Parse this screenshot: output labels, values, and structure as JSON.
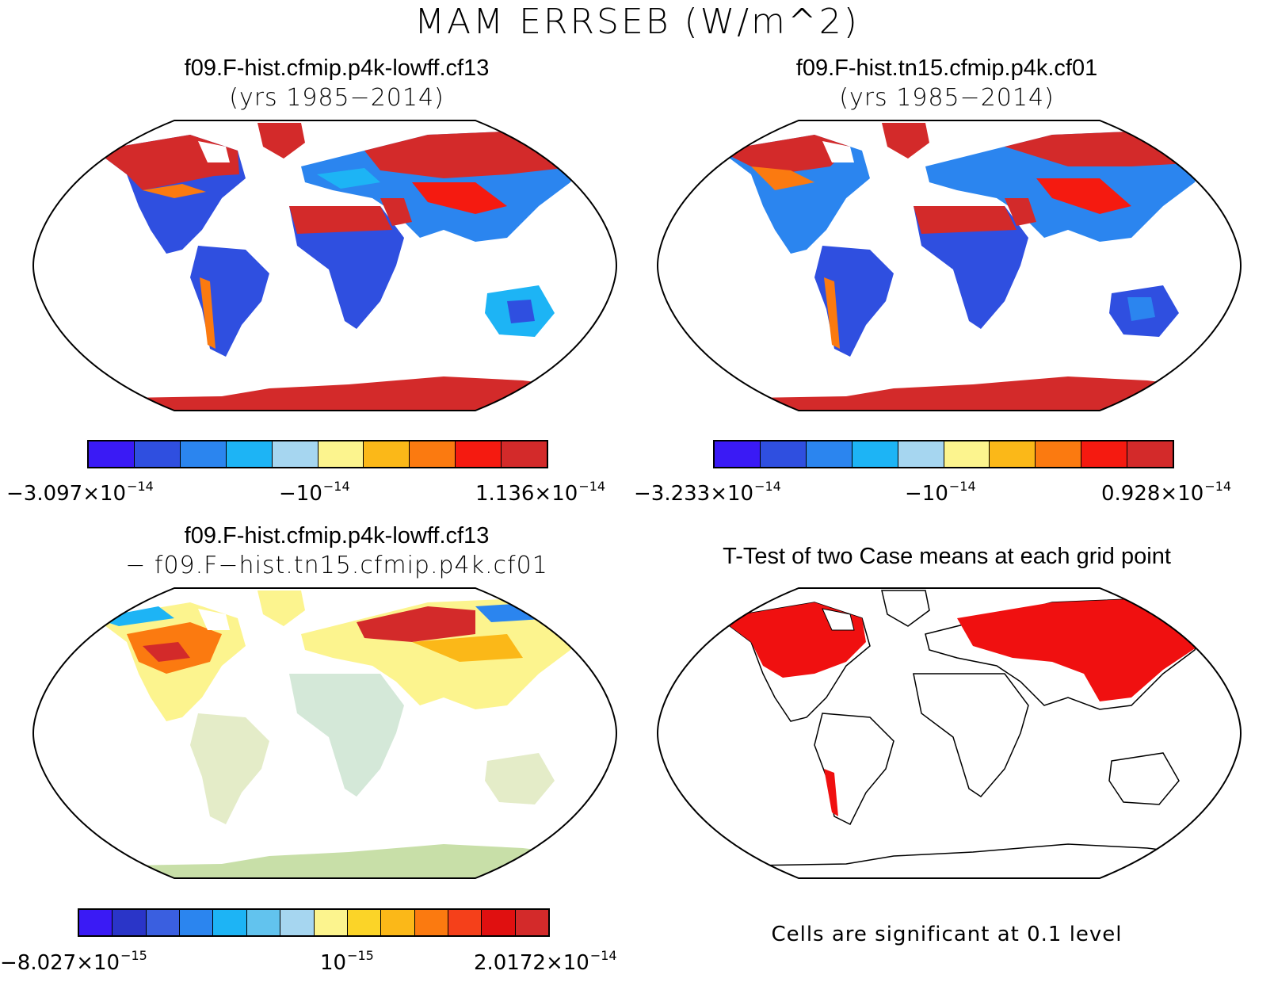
{
  "title": "MAM ERRSEB (W/m^2)",
  "panels": [
    {
      "id": "p1",
      "title": "f09.F-hist.cfmip.p4k-lowff.cf13",
      "subtitle": "(yrs 1985−2014)",
      "colorbar": {
        "colors": [
          "#3a1af5",
          "#2f4fe0",
          "#2b85ef",
          "#1db4f5",
          "#a6d6f0",
          "#fcf48e",
          "#fbb818",
          "#fb7a10",
          "#f51a10",
          "#d32a2a"
        ],
        "labels": [
          {
            "mant": "−3.097×10",
            "exp": "−14",
            "pos": "left"
          },
          {
            "mant": "−10",
            "exp": "−14",
            "pos": "mid"
          },
          {
            "mant": "1.136×10",
            "exp": "−14",
            "pos": "right"
          }
        ]
      }
    },
    {
      "id": "p2",
      "title": "f09.F-hist.tn15.cfmip.p4k.cf01",
      "subtitle": "(yrs 1985−2014)",
      "colorbar": {
        "colors": [
          "#3a1af5",
          "#2f4fe0",
          "#2b85ef",
          "#1db4f5",
          "#a6d6f0",
          "#fcf48e",
          "#fbb818",
          "#fb7a10",
          "#f51a10",
          "#d32a2a"
        ],
        "labels": [
          {
            "mant": "−3.233×10",
            "exp": "−14",
            "pos": "left"
          },
          {
            "mant": "−10",
            "exp": "−14",
            "pos": "mid"
          },
          {
            "mant": "0.928×10",
            "exp": "−14",
            "pos": "right"
          }
        ]
      }
    },
    {
      "id": "p3",
      "title": "f09.F-hist.cfmip.p4k-lowff.cf13",
      "subtitle": "− f09.F−hist.tn15.cfmip.p4k.cf01",
      "colorbar": {
        "colors": [
          "#3a1af5",
          "#2a35c8",
          "#3a5fe0",
          "#2b85ef",
          "#1db4f5",
          "#62c3ee",
          "#a6d6f0",
          "#fcf48e",
          "#fbd428",
          "#fbb818",
          "#fb7a10",
          "#f5401a",
          "#e01010",
          "#d32a2a"
        ],
        "labels": [
          {
            "mant": "−8.027×10",
            "exp": "−15",
            "pos": "left"
          },
          {
            "mant": "10",
            "exp": "−15",
            "pos": "mid"
          },
          {
            "mant": "2.0172×10",
            "exp": "−14",
            "pos": "right"
          }
        ]
      }
    },
    {
      "id": "p4",
      "title": "T-Test of two Case means at each grid point",
      "subtitle": "",
      "note": "Cells are significant at 0.1 level"
    }
  ],
  "colors": {
    "warm": "#d32a2a",
    "hot": "#f51a10",
    "cold": "#2f4fe0",
    "orange": "#fb7a10",
    "light_blue": "#a6d6f0",
    "yellow": "#fcf48e",
    "significant": "#f01010"
  }
}
